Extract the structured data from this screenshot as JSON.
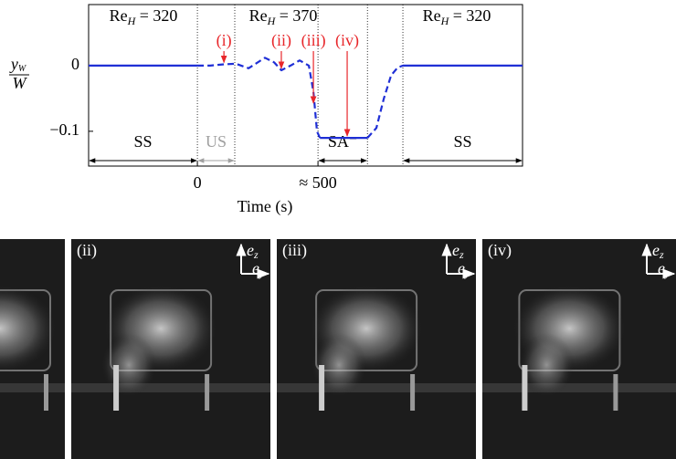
{
  "chart_data": {
    "type": "line",
    "ylabel": {
      "num": "y",
      "num_sub": "W",
      "den": "W"
    },
    "xlabel": "Time (s)",
    "xlim": [
      -451,
      1348
    ],
    "ylim": [
      -0.153,
      0.093
    ],
    "xticks": [
      0,
      {
        "value": 500,
        "label": "≈ 500"
      }
    ],
    "yticks": [
      0,
      {
        "value": -0.1,
        "label": "−0.1"
      }
    ],
    "color": "#1f2fd6",
    "annotation_color": "#e8262a",
    "regimes": [
      {
        "main": "Re",
        "sub": "H",
        "rest": " = 320"
      },
      {
        "main": "Re",
        "sub": "H",
        "rest": " = 370"
      },
      {
        "main": "Re",
        "sub": "H",
        "rest": " = 320"
      }
    ],
    "dividers": [
      0,
      155,
      500,
      705,
      852
    ],
    "spans": [
      {
        "label": "SS",
        "from": -451,
        "to": 0,
        "color": "#000000"
      },
      {
        "label": "US",
        "from": 0,
        "to": 155,
        "color": "#a0a0a0"
      },
      {
        "label": "SA⁻",
        "from": 500,
        "to": 705,
        "color": "#000000"
      },
      {
        "label": "SS",
        "from": 852,
        "to": 1348,
        "color": "#000000"
      }
    ],
    "annotations": [
      {
        "label": "(i)",
        "x": 110,
        "y": 0.002
      },
      {
        "label": "(ii)",
        "x": 348,
        "y": -0.007
      },
      {
        "label": "(iii)",
        "x": 481,
        "y": -0.06
      },
      {
        "label": "(iv)",
        "x": 621,
        "y": -0.11
      }
    ],
    "series": [
      {
        "dashed": false,
        "x": [
          -451,
          0,
          250,
          508,
          705,
          780,
          852,
          1348
        ],
        "values": [
          0,
          0,
          null,
          -0.11,
          -0.11,
          null,
          0,
          0
        ]
      },
      {
        "dashed": true,
        "x": [
          0,
          53,
          110,
          159,
          212,
          280,
          318,
          348,
          386,
          424,
          462,
          481,
          496,
          508,
          600,
          705,
          742,
          773,
          803,
          830,
          852
        ],
        "values": [
          0,
          0,
          0.002,
          0.003,
          -0.004,
          0.012,
          0.005,
          -0.007,
          0,
          0.008,
          0,
          -0.04,
          -0.1,
          -0.11,
          null,
          -0.11,
          -0.095,
          -0.05,
          -0.015,
          -0.003,
          0
        ]
      }
    ]
  },
  "photos": {
    "panels": [
      "(ii)",
      "(iii)",
      "(iv)"
    ],
    "up": "e",
    "up_sub": "z",
    "right": "e",
    "right_sub": "y"
  }
}
